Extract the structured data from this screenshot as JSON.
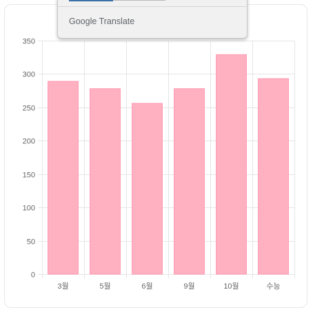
{
  "translate_popup": {
    "brand_google": "Google",
    "brand_translate": "Translate"
  },
  "chart_data": {
    "type": "bar",
    "categories": [
      "3월",
      "5월",
      "6월",
      "9월",
      "10월",
      "수능"
    ],
    "values": [
      289,
      278,
      256,
      278,
      329,
      293
    ],
    "title": "",
    "xlabel": "",
    "ylabel": "",
    "ylim": [
      0,
      350
    ],
    "yticks": [
      0,
      50,
      100,
      150,
      200,
      250,
      300,
      350
    ],
    "grid": true,
    "legend": "none",
    "bar_color": "#ffb1c1",
    "bar_border_color": "#ff99b2",
    "grid_color": "#e5e5e5"
  }
}
